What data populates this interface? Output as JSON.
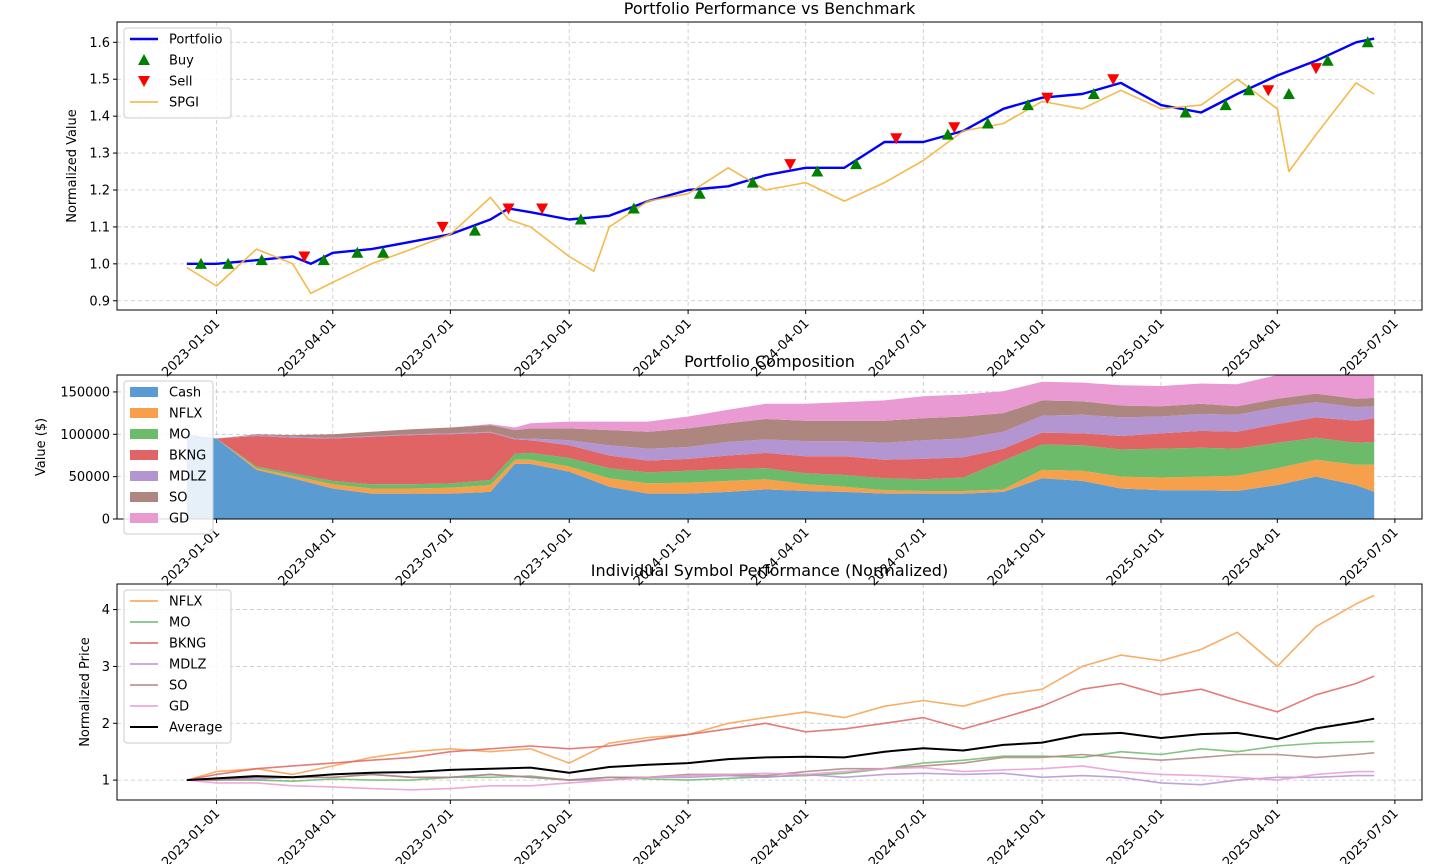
{
  "colors": {
    "portfolio": "#0000ff",
    "buy": "#008000",
    "sell": "#ff0000",
    "benchmark": "#f4b237",
    "cash": "#5a9bd1",
    "nflx": "#f7a04c",
    "mo": "#6bbb6a",
    "bkng": "#e06464",
    "mdlz": "#b395d2",
    "so": "#ae8680",
    "gd": "#ea9ad3",
    "average": "#000000"
  },
  "chart_data": [
    {
      "type": "line",
      "title": "Portfolio Performance vs Benchmark",
      "xlabel": "",
      "ylabel": "Normalized Value",
      "ylim": [
        0.875,
        1.655
      ],
      "xlim": [
        "2022-10-16",
        "2025-07-22"
      ],
      "x_ticks": [
        "2023-01-01",
        "2023-04-01",
        "2023-07-01",
        "2023-10-01",
        "2024-01-01",
        "2024-04-01",
        "2024-07-01",
        "2024-10-01",
        "2025-01-01",
        "2025-04-01",
        "2025-07-01"
      ],
      "y_ticks": [
        "0.9",
        "1.0",
        "1.1",
        "1.2",
        "1.3",
        "1.4",
        "1.5",
        "1.6"
      ],
      "grid": true,
      "legend_position": "top-left",
      "legend": [
        "Portfolio",
        "Buy",
        "Sell",
        "SPGI"
      ],
      "series": [
        {
          "name": "Portfolio",
          "x": [
            "2022-12-09",
            "2023-01-01",
            "2023-02-01",
            "2023-03-01",
            "2023-03-15",
            "2023-04-01",
            "2023-05-01",
            "2023-06-01",
            "2023-07-01",
            "2023-08-01",
            "2023-08-15",
            "2023-09-01",
            "2023-10-01",
            "2023-11-01",
            "2023-12-01",
            "2024-01-01",
            "2024-02-01",
            "2024-03-01",
            "2024-04-01",
            "2024-05-01",
            "2024-06-01",
            "2024-07-01",
            "2024-08-01",
            "2024-09-01",
            "2024-10-01",
            "2024-11-01",
            "2024-12-01",
            "2025-01-01",
            "2025-02-01",
            "2025-03-01",
            "2025-04-01",
            "2025-05-01",
            "2025-06-01",
            "2025-06-15"
          ],
          "values": [
            1.0,
            1.0,
            1.01,
            1.02,
            1.0,
            1.03,
            1.04,
            1.06,
            1.08,
            1.12,
            1.15,
            1.14,
            1.12,
            1.13,
            1.17,
            1.2,
            1.21,
            1.24,
            1.26,
            1.26,
            1.33,
            1.33,
            1.36,
            1.42,
            1.45,
            1.46,
            1.49,
            1.43,
            1.41,
            1.46,
            1.51,
            1.55,
            1.6,
            1.61
          ]
        },
        {
          "name": "SPGI",
          "x": [
            "2022-12-09",
            "2023-01-01",
            "2023-02-01",
            "2023-03-01",
            "2023-03-15",
            "2023-04-01",
            "2023-05-01",
            "2023-06-01",
            "2023-07-01",
            "2023-08-01",
            "2023-08-15",
            "2023-09-01",
            "2023-10-01",
            "2023-10-20",
            "2023-11-01",
            "2023-12-01",
            "2024-01-01",
            "2024-02-01",
            "2024-03-01",
            "2024-04-01",
            "2024-05-01",
            "2024-06-01",
            "2024-07-01",
            "2024-08-01",
            "2024-09-01",
            "2024-10-01",
            "2024-11-01",
            "2024-12-01",
            "2025-01-01",
            "2025-02-01",
            "2025-03-01",
            "2025-04-01",
            "2025-04-10",
            "2025-05-01",
            "2025-06-01",
            "2025-06-15"
          ],
          "values": [
            0.99,
            0.94,
            1.04,
            1.0,
            0.92,
            0.95,
            1.0,
            1.04,
            1.08,
            1.18,
            1.12,
            1.1,
            1.02,
            0.98,
            1.1,
            1.17,
            1.19,
            1.26,
            1.2,
            1.22,
            1.17,
            1.22,
            1.28,
            1.36,
            1.38,
            1.44,
            1.42,
            1.47,
            1.42,
            1.43,
            1.5,
            1.42,
            1.25,
            1.35,
            1.49,
            1.46
          ]
        }
      ],
      "buy_markers": {
        "x": [
          "2022-12-20",
          "2023-01-10",
          "2023-02-05",
          "2023-03-25",
          "2023-04-20",
          "2023-05-10",
          "2023-07-20",
          "2023-10-10",
          "2023-11-20",
          "2024-01-10",
          "2024-02-20",
          "2024-04-10",
          "2024-05-10",
          "2024-07-20",
          "2024-08-20",
          "2024-09-20",
          "2024-11-10",
          "2025-01-20",
          "2025-02-20",
          "2025-03-10",
          "2025-04-10",
          "2025-05-10",
          "2025-06-10"
        ],
        "values": [
          1.0,
          1.0,
          1.01,
          1.01,
          1.03,
          1.03,
          1.09,
          1.12,
          1.15,
          1.19,
          1.22,
          1.25,
          1.27,
          1.35,
          1.38,
          1.43,
          1.46,
          1.41,
          1.43,
          1.47,
          1.46,
          1.55,
          1.6
        ]
      },
      "sell_markers": {
        "x": [
          "2023-03-10",
          "2023-06-25",
          "2023-08-15",
          "2023-09-10",
          "2024-03-20",
          "2024-06-10",
          "2024-07-25",
          "2024-10-05",
          "2024-11-25",
          "2025-03-25",
          "2025-05-01"
        ],
        "values": [
          1.02,
          1.1,
          1.15,
          1.15,
          1.27,
          1.34,
          1.37,
          1.45,
          1.5,
          1.47,
          1.53
        ]
      }
    },
    {
      "type": "area",
      "title": "Portfolio Composition",
      "xlabel": "",
      "ylabel": "Value ($)",
      "ylim": [
        0,
        170000
      ],
      "xlim": [
        "2022-10-16",
        "2025-07-22"
      ],
      "x_ticks": [
        "2023-01-01",
        "2023-04-01",
        "2023-07-01",
        "2023-10-01",
        "2024-01-01",
        "2024-04-01",
        "2024-07-01",
        "2024-10-01",
        "2025-01-01",
        "2025-04-01",
        "2025-07-01"
      ],
      "y_ticks": [
        "0",
        "50000",
        "100000",
        "150000"
      ],
      "grid": true,
      "stacked": true,
      "legend_position": "top-left",
      "x": [
        "2022-12-09",
        "2023-01-01",
        "2023-02-01",
        "2023-03-01",
        "2023-04-01",
        "2023-05-01",
        "2023-06-01",
        "2023-07-01",
        "2023-08-01",
        "2023-08-20",
        "2023-09-01",
        "2023-10-01",
        "2023-11-01",
        "2023-12-01",
        "2024-01-01",
        "2024-02-01",
        "2024-03-01",
        "2024-04-01",
        "2024-05-01",
        "2024-06-01",
        "2024-07-01",
        "2024-08-01",
        "2024-09-01",
        "2024-10-01",
        "2024-11-01",
        "2024-12-01",
        "2025-01-01",
        "2025-02-01",
        "2025-03-01",
        "2025-04-01",
        "2025-05-01",
        "2025-06-01",
        "2025-06-15"
      ],
      "series": [
        {
          "name": "Cash",
          "values": [
            100000,
            95000,
            58000,
            48000,
            36000,
            30000,
            30000,
            30000,
            32000,
            65000,
            65000,
            56000,
            38000,
            30000,
            30000,
            32000,
            35000,
            33000,
            32000,
            30000,
            30000,
            30000,
            32000,
            48000,
            45000,
            36000,
            34000,
            34000,
            33000,
            40000,
            50000,
            40000,
            32000
          ]
        },
        {
          "name": "NFLX",
          "values": [
            0,
            0,
            2000,
            3000,
            5000,
            6000,
            6000,
            7000,
            8000,
            5000,
            5000,
            6000,
            10000,
            12000,
            13000,
            13000,
            12000,
            8000,
            6000,
            4000,
            3000,
            3000,
            3000,
            10000,
            12000,
            14000,
            15000,
            16000,
            18000,
            20000,
            20000,
            24000,
            32000
          ]
        },
        {
          "name": "MO",
          "values": [
            0,
            0,
            2000,
            3000,
            4000,
            5000,
            5000,
            5000,
            6000,
            7000,
            8000,
            10000,
            12000,
            13000,
            14000,
            14000,
            13000,
            13000,
            14000,
            14000,
            14000,
            16000,
            34000,
            30000,
            30000,
            32000,
            34000,
            34000,
            32000,
            30000,
            26000,
            26000,
            27000
          ]
        },
        {
          "name": "BKNG",
          "values": [
            0,
            0,
            36000,
            42000,
            50000,
            56000,
            58000,
            58000,
            56000,
            17000,
            15000,
            15000,
            15000,
            14000,
            14000,
            16000,
            18000,
            20000,
            22000,
            22000,
            24000,
            24000,
            14000,
            14000,
            14000,
            16000,
            18000,
            20000,
            20000,
            22000,
            24000,
            26000,
            28000
          ]
        },
        {
          "name": "MDLZ",
          "values": [
            0,
            0,
            1000,
            1000,
            1000,
            1000,
            1000,
            1000,
            1000,
            1000,
            2000,
            6000,
            12000,
            14000,
            14000,
            16000,
            16000,
            18000,
            18000,
            20000,
            22000,
            22000,
            20000,
            20000,
            22000,
            22000,
            20000,
            20000,
            20000,
            20000,
            18000,
            16000,
            14000
          ]
        },
        {
          "name": "SO",
          "values": [
            0,
            0,
            1000,
            2000,
            4000,
            5000,
            6000,
            7000,
            8000,
            10000,
            12000,
            14000,
            18000,
            20000,
            22000,
            22000,
            24000,
            24000,
            24000,
            26000,
            26000,
            26000,
            22000,
            18000,
            16000,
            14000,
            12000,
            12000,
            10000,
            10000,
            10000,
            10000,
            10000
          ]
        },
        {
          "name": "GD",
          "values": [
            0,
            0,
            0,
            0,
            0,
            0,
            0,
            0,
            1000,
            3000,
            6000,
            8000,
            10000,
            12000,
            14000,
            16000,
            18000,
            20000,
            22000,
            24000,
            26000,
            26000,
            26000,
            22000,
            22000,
            24000,
            24000,
            24000,
            26000,
            28000,
            30000,
            34000,
            36000
          ]
        }
      ]
    },
    {
      "type": "line",
      "title": "Individual Symbol Performance (Normalized)",
      "xlabel": "",
      "ylabel": "Normalized Price",
      "ylim": [
        0.65,
        4.45
      ],
      "xlim": [
        "2022-10-16",
        "2025-07-22"
      ],
      "x_ticks": [
        "2023-01-01",
        "2023-04-01",
        "2023-07-01",
        "2023-10-01",
        "2024-01-01",
        "2024-04-01",
        "2024-07-01",
        "2024-10-01",
        "2025-01-01",
        "2025-04-01",
        "2025-07-01"
      ],
      "y_ticks": [
        "1",
        "2",
        "3",
        "4"
      ],
      "grid": true,
      "legend_position": "top-left",
      "x": [
        "2022-12-09",
        "2023-01-01",
        "2023-02-01",
        "2023-03-01",
        "2023-04-01",
        "2023-05-01",
        "2023-06-01",
        "2023-07-01",
        "2023-08-01",
        "2023-09-01",
        "2023-10-01",
        "2023-11-01",
        "2023-12-01",
        "2024-01-01",
        "2024-02-01",
        "2024-03-01",
        "2024-04-01",
        "2024-05-01",
        "2024-06-01",
        "2024-07-01",
        "2024-08-01",
        "2024-09-01",
        "2024-10-01",
        "2024-11-01",
        "2024-12-01",
        "2025-01-01",
        "2025-02-01",
        "2025-03-01",
        "2025-04-01",
        "2025-05-01",
        "2025-06-01",
        "2025-06-15"
      ],
      "series": [
        {
          "name": "NFLX",
          "values": [
            1.0,
            1.15,
            1.2,
            1.1,
            1.25,
            1.4,
            1.5,
            1.55,
            1.5,
            1.55,
            1.3,
            1.65,
            1.75,
            1.8,
            2.0,
            2.1,
            2.2,
            2.1,
            2.3,
            2.4,
            2.3,
            2.5,
            2.6,
            3.0,
            3.2,
            3.1,
            3.3,
            3.6,
            3.0,
            3.7,
            4.1,
            4.25
          ]
        },
        {
          "name": "MO",
          "values": [
            1.0,
            1.0,
            1.0,
            0.98,
            1.02,
            1.0,
            1.0,
            1.05,
            1.05,
            1.07,
            1.0,
            1.05,
            1.02,
            1.0,
            1.03,
            1.06,
            1.08,
            1.12,
            1.2,
            1.3,
            1.35,
            1.42,
            1.42,
            1.4,
            1.5,
            1.45,
            1.55,
            1.5,
            1.6,
            1.65,
            1.67,
            1.68
          ]
        },
        {
          "name": "BKNG",
          "values": [
            1.0,
            1.1,
            1.2,
            1.25,
            1.3,
            1.35,
            1.4,
            1.5,
            1.55,
            1.6,
            1.55,
            1.6,
            1.7,
            1.8,
            1.9,
            2.0,
            1.85,
            1.9,
            2.0,
            2.1,
            1.9,
            2.1,
            2.3,
            2.6,
            2.7,
            2.5,
            2.6,
            2.4,
            2.2,
            2.5,
            2.7,
            2.83
          ]
        },
        {
          "name": "MDLZ",
          "values": [
            1.0,
            1.0,
            1.02,
            1.05,
            1.05,
            1.1,
            1.05,
            1.05,
            1.1,
            1.05,
            1.0,
            1.0,
            1.05,
            1.05,
            1.08,
            1.05,
            1.1,
            1.05,
            1.1,
            1.12,
            1.1,
            1.12,
            1.05,
            1.08,
            1.05,
            0.95,
            0.92,
            1.0,
            1.05,
            1.05,
            1.08,
            1.08
          ]
        },
        {
          "name": "SO",
          "values": [
            1.0,
            1.0,
            1.05,
            1.05,
            1.05,
            1.1,
            1.05,
            1.05,
            1.1,
            1.05,
            1.0,
            1.05,
            1.05,
            1.1,
            1.1,
            1.08,
            1.15,
            1.2,
            1.2,
            1.25,
            1.3,
            1.4,
            1.4,
            1.45,
            1.4,
            1.35,
            1.4,
            1.45,
            1.45,
            1.4,
            1.45,
            1.48
          ]
        },
        {
          "name": "GD",
          "values": [
            1.0,
            0.95,
            0.95,
            0.9,
            0.88,
            0.85,
            0.83,
            0.85,
            0.9,
            0.9,
            0.95,
            1.0,
            1.05,
            1.08,
            1.1,
            1.12,
            1.1,
            1.15,
            1.2,
            1.22,
            1.15,
            1.18,
            1.2,
            1.25,
            1.15,
            1.1,
            1.08,
            1.05,
            1.0,
            1.1,
            1.15,
            1.15
          ]
        },
        {
          "name": "Average",
          "values": [
            1.0,
            1.03,
            1.07,
            1.05,
            1.1,
            1.13,
            1.14,
            1.18,
            1.2,
            1.22,
            1.13,
            1.23,
            1.27,
            1.3,
            1.37,
            1.4,
            1.41,
            1.4,
            1.5,
            1.56,
            1.52,
            1.62,
            1.66,
            1.8,
            1.83,
            1.74,
            1.81,
            1.83,
            1.72,
            1.91,
            2.02,
            2.08
          ]
        }
      ]
    }
  ]
}
